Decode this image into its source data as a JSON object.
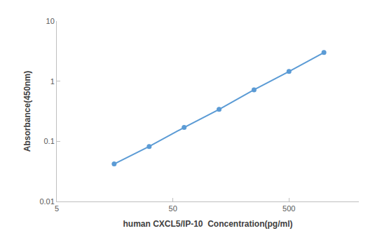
{
  "chart_data": {
    "type": "line",
    "x_label": "human CXCL5/IP-10  Concentration(pg/ml)",
    "y_label": "Absorbance(450nm)",
    "x": [
      15.6,
      31.25,
      62.5,
      125,
      250,
      500,
      1000
    ],
    "values": [
      0.042,
      0.082,
      0.17,
      0.34,
      0.72,
      1.45,
      3.0
    ],
    "color": "#5b9bd5",
    "marker": "circle",
    "line_style": "solid",
    "log": true,
    "grid": false,
    "xlim": [
      5,
      2000
    ],
    "xticks": [
      5,
      50,
      500
    ],
    "ylim": [
      0.01,
      10
    ],
    "yticks": [
      0.01,
      0.1,
      1,
      10
    ]
  }
}
